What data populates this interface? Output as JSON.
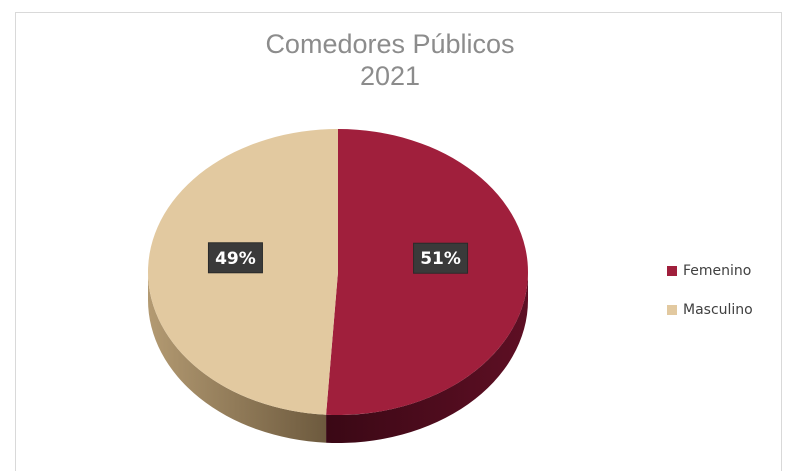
{
  "chart_data": {
    "type": "pie",
    "title": [
      "Comedores Públicos",
      "2021"
    ],
    "categories": [
      "Femenino",
      "Masculino"
    ],
    "values": [
      51,
      49
    ],
    "value_labels": [
      "51%",
      "49%"
    ],
    "colors": [
      "#a01f3c",
      "#e2c9a0"
    ],
    "side_colors": [
      "#4a0a1c",
      "#8c7352"
    ],
    "style": "3d",
    "legend_position": "right",
    "data_label_style": "white text on dark box"
  }
}
